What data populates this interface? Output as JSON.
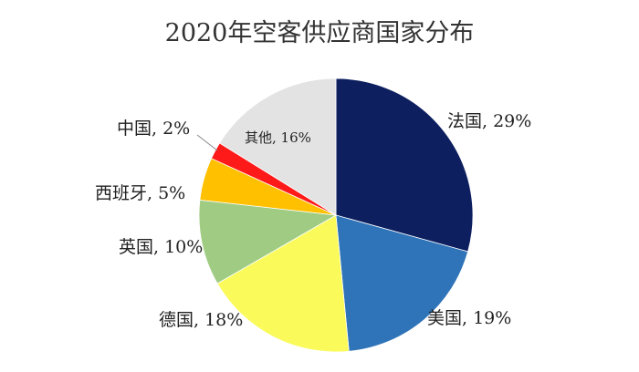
{
  "chart_data": {
    "type": "pie",
    "title": "2020年空客供应商国家分布",
    "slices": [
      {
        "name": "法国",
        "value": 29,
        "label": "法国, 29%",
        "color": "#0d1f5f"
      },
      {
        "name": "美国",
        "value": 19,
        "label": "美国, 19%",
        "color": "#2f73b8"
      },
      {
        "name": "德国",
        "value": 18,
        "label": "德国, 18%",
        "color": "#fafa5a"
      },
      {
        "name": "英国",
        "value": 10,
        "label": "英国, 10%",
        "color": "#9fcc82"
      },
      {
        "name": "西班牙",
        "value": 5,
        "label": "西班牙, 5%",
        "color": "#ffc000"
      },
      {
        "name": "中国",
        "value": 2,
        "label": "中国, 2%",
        "color": "#ff1a1a"
      },
      {
        "name": "其他",
        "value": 16,
        "label": "其他, 16%",
        "color": "#e3e3e3"
      }
    ],
    "start_angle_deg": 0,
    "direction": "clockwise",
    "legend": "none"
  }
}
